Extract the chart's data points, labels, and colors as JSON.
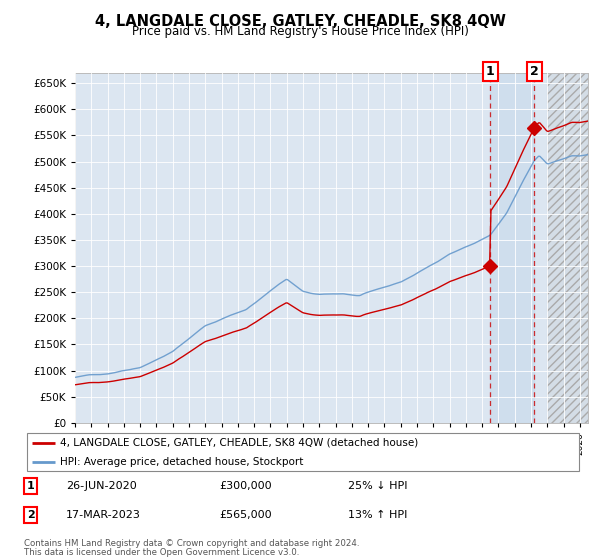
{
  "title": "4, LANGDALE CLOSE, GATLEY, CHEADLE, SK8 4QW",
  "subtitle": "Price paid vs. HM Land Registry's House Price Index (HPI)",
  "ylim": [
    0,
    670000
  ],
  "yticks": [
    0,
    50000,
    100000,
    150000,
    200000,
    250000,
    300000,
    350000,
    400000,
    450000,
    500000,
    550000,
    600000,
    650000
  ],
  "xlim_start": 1995.0,
  "xlim_end": 2026.5,
  "hpi_color": "#6699cc",
  "price_color": "#cc0000",
  "bg_color": "#dce6f1",
  "shade_color": "#ccd9ec",
  "legend_items": [
    "4, LANGDALE CLOSE, GATLEY, CHEADLE, SK8 4QW (detached house)",
    "HPI: Average price, detached house, Stockport"
  ],
  "sale1_x": 2020.5,
  "sale1_y": 300000,
  "sale1_date": "26-JUN-2020",
  "sale1_price": "£300,000",
  "sale1_pct": "25% ↓ HPI",
  "sale2_x": 2023.21,
  "sale2_y": 565000,
  "sale2_date": "17-MAR-2023",
  "sale2_price": "£565,000",
  "sale2_pct": "13% ↑ HPI",
  "footer1": "Contains HM Land Registry data © Crown copyright and database right 2024.",
  "footer2": "This data is licensed under the Open Government Licence v3.0."
}
